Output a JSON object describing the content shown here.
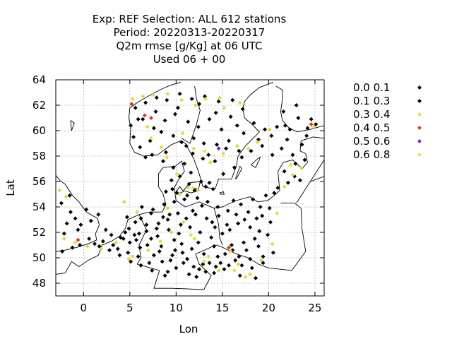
{
  "chart_data": {
    "type": "scatter",
    "title_lines": [
      "Exp: REF   Selection: ALL    612 stations",
      "Period: 20220313-20220317",
      "Q2m rmse [g/Kg] at  06 UTC",
      "Used  06 + 00"
    ],
    "xlabel": "Lon",
    "ylabel": "Lat",
    "xlim": [
      -3,
      26
    ],
    "ylim": [
      47,
      64
    ],
    "xticks": [
      0,
      5,
      10,
      15,
      20,
      25
    ],
    "yticks": [
      48,
      50,
      52,
      54,
      56,
      58,
      60,
      62,
      64
    ],
    "grid": true,
    "legend_position": "right",
    "series": [
      {
        "name": "0.0 0.1",
        "color": "#000000",
        "marker": "diamond",
        "points": [
          [
            1.2,
            51.1
          ],
          [
            4.3,
            51.5
          ],
          [
            6.1,
            50.8
          ],
          [
            8.5,
            49.7
          ],
          [
            11.2,
            49.9
          ],
          [
            13.0,
            50.3
          ],
          [
            14.5,
            50.1
          ],
          [
            17.1,
            49.4
          ],
          [
            3.2,
            51.0
          ],
          [
            5.5,
            51.8
          ],
          [
            7.6,
            50.2
          ],
          [
            9.9,
            50.6
          ],
          [
            12.4,
            51.2
          ],
          [
            16.0,
            51.0
          ],
          [
            18.2,
            49.2
          ],
          [
            6.8,
            52.1
          ],
          [
            10.5,
            52.6
          ],
          [
            13.9,
            52.8
          ],
          [
            15.8,
            52.2
          ],
          [
            9.3,
            53.4
          ],
          [
            11.8,
            53.7
          ],
          [
            14.6,
            53.3
          ],
          [
            17.4,
            53.0
          ],
          [
            8.7,
            54.2
          ],
          [
            10.9,
            54.6
          ],
          [
            12.8,
            54.1
          ],
          [
            16.2,
            54.5
          ],
          [
            19.1,
            54.0
          ],
          [
            9.6,
            55.4
          ],
          [
            11.4,
            55.8
          ],
          [
            13.2,
            55.6
          ],
          [
            6.7,
            57.9
          ],
          [
            8.9,
            58.3
          ],
          [
            11.1,
            58.8
          ],
          [
            13.5,
            58.1
          ],
          [
            15.7,
            59.2
          ],
          [
            17.3,
            59.8
          ],
          [
            18.4,
            60.6
          ],
          [
            5.9,
            60.9
          ],
          [
            7.8,
            61.5
          ],
          [
            10.2,
            61.8
          ],
          [
            12.5,
            62.1
          ],
          [
            14.3,
            61.4
          ],
          [
            16.1,
            62.4
          ],
          [
            21.8,
            60.4
          ],
          [
            22.9,
            57.4
          ],
          [
            23.6,
            58.9
          ],
          [
            24.2,
            60.2
          ],
          [
            25.1,
            60.5
          ],
          [
            20.4,
            58.1
          ],
          [
            -0.6,
            52.2
          ],
          [
            -1.4,
            53.6
          ],
          [
            -2.1,
            51.9
          ],
          [
            0.8,
            52.9
          ],
          [
            1.6,
            53.4
          ],
          [
            4.9,
            52.3
          ],
          [
            6.2,
            53.1
          ],
          [
            7.3,
            53.5
          ],
          [
            8.1,
            52.7
          ],
          [
            9.8,
            51.4
          ],
          [
            10.7,
            50.4
          ],
          [
            11.9,
            49.3
          ],
          [
            13.6,
            49.6
          ],
          [
            15.2,
            49.1
          ],
          [
            16.9,
            48.6
          ],
          [
            18.6,
            48.4
          ],
          [
            19.4,
            50.1
          ],
          [
            14.1,
            48.8
          ],
          [
            12.2,
            48.5
          ],
          [
            9.1,
            48.9
          ]
        ]
      },
      {
        "name": "0.1 0.3",
        "color": "#000000",
        "marker": "diamond",
        "points": [
          [
            2.1,
            51.3
          ],
          [
            3.7,
            50.7
          ],
          [
            4.8,
            50.4
          ],
          [
            5.9,
            50.1
          ],
          [
            7.1,
            49.6
          ],
          [
            8.2,
            50.5
          ],
          [
            9.4,
            49.8
          ],
          [
            10.6,
            51.1
          ],
          [
            11.7,
            50.7
          ],
          [
            12.9,
            49.5
          ],
          [
            14.1,
            50.9
          ],
          [
            15.3,
            50.3
          ],
          [
            16.4,
            49.8
          ],
          [
            17.6,
            50.6
          ],
          [
            18.9,
            50.9
          ],
          [
            4.5,
            52.0
          ],
          [
            5.7,
            51.4
          ],
          [
            6.9,
            51.0
          ],
          [
            8.0,
            51.7
          ],
          [
            9.2,
            52.2
          ],
          [
            10.3,
            51.9
          ],
          [
            11.5,
            52.4
          ],
          [
            12.6,
            52.0
          ],
          [
            13.8,
            51.6
          ],
          [
            15.0,
            51.9
          ],
          [
            16.7,
            52.7
          ],
          [
            18.0,
            52.4
          ],
          [
            19.3,
            53.3
          ],
          [
            20.1,
            53.9
          ],
          [
            6.3,
            54.0
          ],
          [
            7.5,
            53.8
          ],
          [
            8.6,
            53.2
          ],
          [
            9.8,
            54.4
          ],
          [
            10.1,
            55.1
          ],
          [
            11.2,
            54.9
          ],
          [
            12.3,
            54.7
          ],
          [
            13.4,
            54.4
          ],
          [
            14.5,
            54.0
          ],
          [
            15.6,
            53.7
          ],
          [
            17.0,
            54.2
          ],
          [
            18.3,
            54.6
          ],
          [
            19.7,
            54.9
          ],
          [
            8.9,
            55.2
          ],
          [
            9.5,
            56.1
          ],
          [
            10.4,
            56.4
          ],
          [
            11.6,
            56.7
          ],
          [
            12.7,
            56.0
          ],
          [
            14.0,
            55.4
          ],
          [
            15.1,
            56.6
          ],
          [
            16.3,
            57.1
          ],
          [
            17.1,
            57.9
          ],
          [
            18.1,
            58.4
          ],
          [
            18.9,
            59.3
          ],
          [
            15.4,
            58.6
          ],
          [
            14.2,
            57.6
          ],
          [
            12.9,
            57.8
          ],
          [
            11.8,
            58.2
          ],
          [
            10.6,
            59.1
          ],
          [
            9.7,
            59.6
          ],
          [
            8.4,
            59.9
          ],
          [
            7.2,
            59.2
          ],
          [
            6.1,
            58.7
          ],
          [
            5.4,
            59.5
          ],
          [
            5.1,
            60.4
          ],
          [
            6.4,
            60.9
          ],
          [
            7.6,
            60.2
          ],
          [
            8.8,
            60.8
          ],
          [
            9.9,
            61.3
          ],
          [
            11.3,
            60.7
          ],
          [
            12.4,
            60.3
          ],
          [
            13.6,
            60.9
          ],
          [
            14.9,
            60.1
          ],
          [
            15.9,
            61.1
          ],
          [
            17.2,
            61.7
          ],
          [
            16.6,
            60.4
          ],
          [
            14.6,
            62.3
          ],
          [
            13.1,
            62.7
          ],
          [
            11.7,
            62.5
          ],
          [
            10.4,
            62.9
          ],
          [
            9.0,
            62.4
          ],
          [
            7.9,
            62.6
          ],
          [
            6.7,
            62.2
          ],
          [
            5.6,
            61.8
          ],
          [
            19.6,
            60.1
          ],
          [
            20.9,
            60.3
          ],
          [
            22.3,
            60.1
          ],
          [
            23.2,
            61.0
          ],
          [
            22.0,
            59.3
          ],
          [
            21.4,
            58.6
          ],
          [
            22.6,
            58.1
          ],
          [
            23.9,
            57.7
          ],
          [
            22.8,
            56.4
          ],
          [
            21.7,
            56.8
          ],
          [
            21.0,
            55.5
          ],
          [
            20.6,
            55.1
          ],
          [
            22.1,
            55.9
          ],
          [
            23.4,
            56.1
          ],
          [
            24.1,
            59.6
          ],
          [
            20.2,
            52.8
          ],
          [
            19.0,
            52.1
          ],
          [
            18.5,
            51.5
          ],
          [
            17.3,
            51.2
          ],
          [
            16.1,
            50.6
          ],
          [
            14.8,
            49.6
          ],
          [
            13.2,
            48.9
          ],
          [
            11.4,
            48.7
          ],
          [
            10.0,
            49.2
          ],
          [
            8.8,
            48.6
          ],
          [
            7.4,
            49.0
          ],
          [
            6.2,
            49.4
          ],
          [
            5.1,
            49.7
          ],
          [
            3.9,
            50.2
          ],
          [
            2.8,
            50.6
          ],
          [
            1.7,
            50.9
          ],
          [
            0.6,
            51.5
          ],
          [
            -0.4,
            51.0
          ],
          [
            -1.2,
            50.8
          ],
          [
            -2.3,
            50.5
          ],
          [
            -0.9,
            53.1
          ],
          [
            -1.8,
            52.7
          ],
          [
            -2.4,
            54.3
          ],
          [
            -1.5,
            54.9
          ],
          [
            -0.3,
            52.6
          ],
          [
            0.3,
            53.8
          ],
          [
            4.7,
            53.2
          ],
          [
            5.6,
            52.8
          ],
          [
            6.8,
            52.6
          ],
          [
            7.9,
            52.3
          ],
          [
            9.1,
            53.0
          ],
          [
            10.2,
            53.5
          ],
          [
            11.1,
            53.1
          ],
          [
            12.1,
            53.4
          ],
          [
            13.3,
            53.1
          ],
          [
            14.2,
            52.4
          ],
          [
            15.5,
            52.6
          ],
          [
            16.5,
            53.4
          ],
          [
            17.8,
            53.6
          ],
          [
            18.7,
            53.1
          ],
          [
            19.9,
            51.8
          ],
          [
            20.5,
            50.4
          ],
          [
            19.4,
            49.6
          ],
          [
            18.0,
            49.9
          ],
          [
            16.8,
            50.1
          ],
          [
            15.7,
            49.4
          ],
          [
            14.3,
            49.3
          ],
          [
            12.5,
            49.1
          ],
          [
            10.8,
            49.6
          ],
          [
            9.6,
            50.2
          ],
          [
            8.4,
            50.9
          ],
          [
            7.3,
            51.5
          ],
          [
            6.0,
            51.9
          ],
          [
            5.0,
            51.2
          ],
          [
            4.0,
            51.6
          ],
          [
            3.0,
            51.8
          ],
          [
            2.4,
            52.2
          ],
          [
            12.0,
            55.3
          ],
          [
            13.6,
            55.9
          ],
          [
            10.9,
            57.4
          ],
          [
            9.7,
            57.1
          ],
          [
            8.6,
            57.6
          ],
          [
            7.4,
            58.1
          ],
          [
            11.9,
            59.4
          ],
          [
            13.0,
            59.0
          ],
          [
            14.4,
            58.9
          ],
          [
            16.8,
            58.4
          ],
          [
            19.3,
            58.8
          ],
          [
            20.3,
            59.6
          ],
          [
            21.6,
            61.5
          ],
          [
            23.0,
            62.0
          ],
          [
            24.6,
            60.9
          ]
        ]
      },
      {
        "name": "0.3 0.4",
        "color": "#e6d845",
        "marker": "diamond",
        "points": [
          [
            5.3,
            62.5
          ],
          [
            6.4,
            62.7
          ],
          [
            7.5,
            62.8
          ],
          [
            9.1,
            62.9
          ],
          [
            10.6,
            62.4
          ],
          [
            13.2,
            62.5
          ],
          [
            14.7,
            62.6
          ],
          [
            15.2,
            61.8
          ],
          [
            16.9,
            62.2
          ],
          [
            12.1,
            62.0
          ],
          [
            6.9,
            60.3
          ],
          [
            7.3,
            59.4
          ],
          [
            8.4,
            58.7
          ],
          [
            9.0,
            57.9
          ],
          [
            10.7,
            59.8
          ],
          [
            11.9,
            58.6
          ],
          [
            13.7,
            57.5
          ],
          [
            15.1,
            58.2
          ],
          [
            16.6,
            58.8
          ],
          [
            17.8,
            58.6
          ],
          [
            18.8,
            59.1
          ],
          [
            20.1,
            60.1
          ],
          [
            22.4,
            57.3
          ],
          [
            23.5,
            57.1
          ],
          [
            24.9,
            60.3
          ],
          [
            10.1,
            56.6
          ],
          [
            11.3,
            55.5
          ],
          [
            12.4,
            55.3
          ],
          [
            10.4,
            55.0
          ],
          [
            9.1,
            53.9
          ],
          [
            10.8,
            52.8
          ],
          [
            12.0,
            51.5
          ],
          [
            13.5,
            50.1
          ],
          [
            14.6,
            49.0
          ],
          [
            15.9,
            50.5
          ],
          [
            16.7,
            49.5
          ],
          [
            18.0,
            48.7
          ],
          [
            19.2,
            49.8
          ],
          [
            20.4,
            51.1
          ],
          [
            8.3,
            51.3
          ],
          [
            7.0,
            50.6
          ],
          [
            5.3,
            50.1
          ],
          [
            4.9,
            49.9
          ],
          [
            3.5,
            51.2
          ],
          [
            1.9,
            50.7
          ],
          [
            0.4,
            50.9
          ],
          [
            -0.9,
            51.2
          ],
          [
            -2.1,
            51.5
          ],
          [
            -2.6,
            55.3
          ],
          [
            -1.9,
            54.8
          ],
          [
            4.4,
            54.4
          ],
          [
            5.8,
            53.6
          ],
          [
            9.5,
            52.0
          ],
          [
            11.6,
            51.8
          ],
          [
            13.0,
            49.7
          ],
          [
            16.3,
            49.0
          ],
          [
            17.5,
            48.5
          ],
          [
            20.9,
            53.5
          ],
          [
            21.7,
            55.6
          ],
          [
            22.6,
            56.5
          ]
        ]
      },
      {
        "name": "0.4 0.5",
        "color": "#e03a1a",
        "marker": "diamond",
        "points": [
          [
            5.2,
            62.1
          ],
          [
            6.6,
            61.2
          ],
          [
            7.3,
            61.0
          ],
          [
            -0.6,
            51.4
          ],
          [
            15.7,
            50.8
          ],
          [
            24.6,
            60.5
          ]
        ]
      },
      {
        "name": "0.5 0.6",
        "color": "#7a1fd0",
        "marker": "diamond",
        "points": [
          [
            14.6,
            58.6
          ]
        ]
      },
      {
        "name": "0.6 0.8",
        "color": "#f0e050",
        "marker": "diamond",
        "points": [
          [
            11.8,
            55.5
          ],
          [
            13.1,
            58.4
          ]
        ]
      }
    ]
  }
}
